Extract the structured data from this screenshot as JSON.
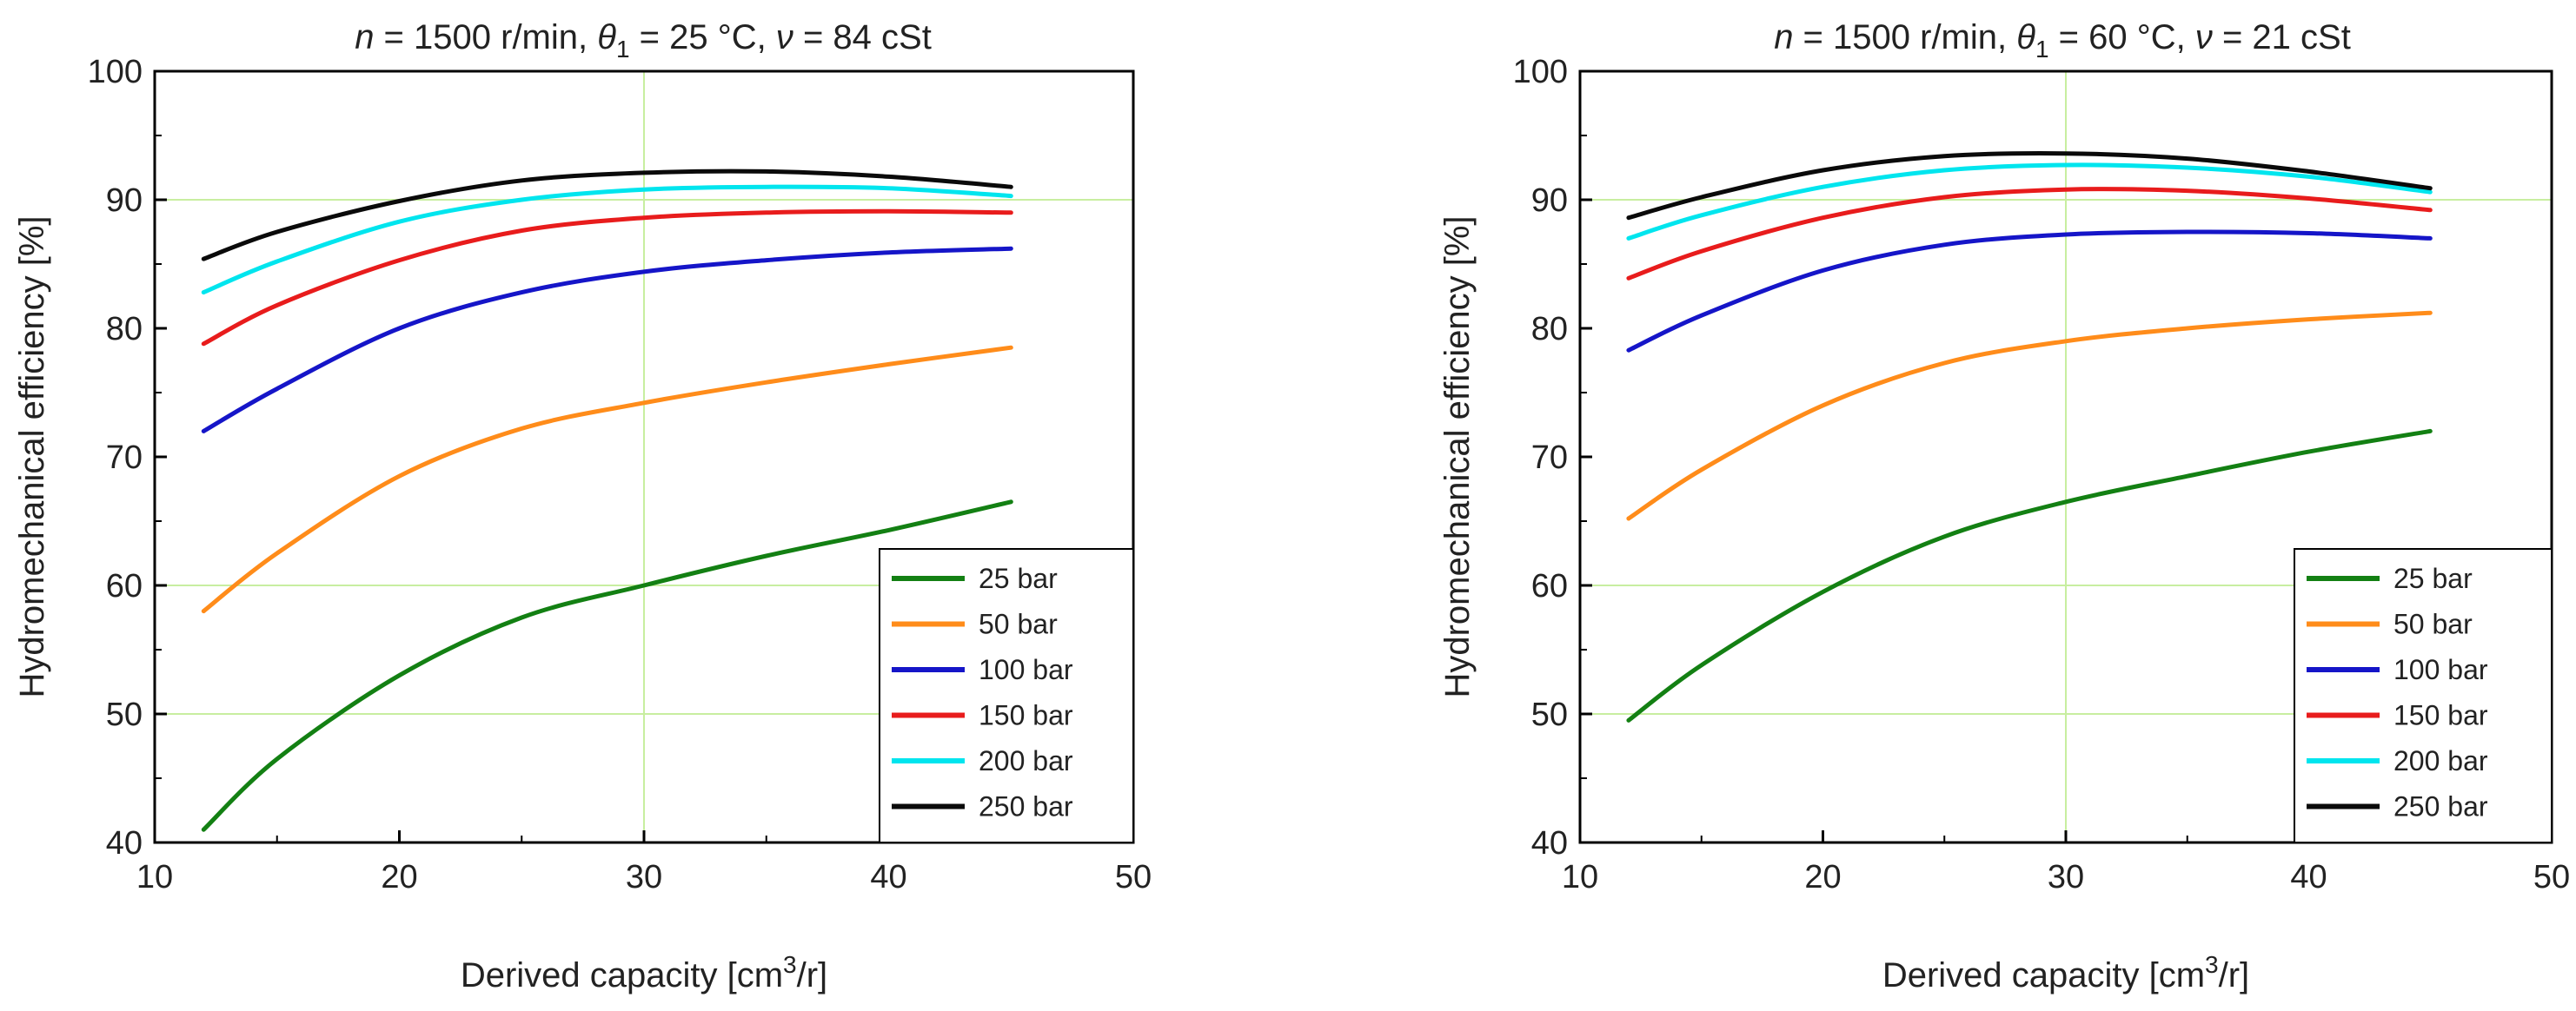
{
  "chart_data": [
    {
      "type": "line",
      "title": {
        "n": "n",
        "n_val": " = 1500 r/min, ",
        "theta": "θ",
        "theta_sub": "1",
        "theta_val": " = 25 °C, ",
        "nu": "ν",
        "nu_val": " = 84 cSt"
      },
      "xlabel": {
        "main": "Derived capacity [cm",
        "sup": "3",
        "tail": "/r]"
      },
      "ylabel": "Hydromechanical efficiency [%]",
      "xlim": [
        10,
        50
      ],
      "ylim": [
        40,
        100
      ],
      "xticks": [
        10,
        20,
        30,
        40,
        50
      ],
      "yticks": [
        40,
        50,
        60,
        70,
        80,
        90,
        100
      ],
      "grid": {
        "x": [
          30
        ],
        "y": [
          50,
          60,
          90
        ]
      },
      "legend_position": "bottom-right",
      "x": [
        12,
        15,
        20,
        25,
        30,
        35,
        40,
        45
      ],
      "series": [
        {
          "name": "25 bar",
          "color": "#138013",
          "values": [
            41.0,
            46.5,
            53.0,
            57.5,
            60.0,
            62.3,
            64.3,
            66.5
          ]
        },
        {
          "name": "50 bar",
          "color": "#ff8c1a",
          "values": [
            58.0,
            62.5,
            68.5,
            72.2,
            74.2,
            75.8,
            77.2,
            78.5
          ]
        },
        {
          "name": "100 bar",
          "color": "#1515c8",
          "values": [
            72.0,
            75.3,
            80.0,
            82.8,
            84.4,
            85.3,
            85.9,
            86.2
          ]
        },
        {
          "name": "150 bar",
          "color": "#e81c1c",
          "values": [
            78.8,
            81.8,
            85.3,
            87.6,
            88.6,
            89.0,
            89.1,
            89.0
          ]
        },
        {
          "name": "200 bar",
          "color": "#00e5ee",
          "values": [
            82.8,
            85.2,
            88.3,
            90.0,
            90.8,
            91.0,
            90.9,
            90.3
          ]
        },
        {
          "name": "250 bar",
          "color": "#0a0a0a",
          "values": [
            85.4,
            87.5,
            89.9,
            91.5,
            92.1,
            92.2,
            91.8,
            91.0
          ]
        }
      ]
    },
    {
      "type": "line",
      "title": {
        "n": "n",
        "n_val": " = 1500 r/min, ",
        "theta": "θ",
        "theta_sub": "1",
        "theta_val": " = 60 °C, ",
        "nu": "ν",
        "nu_val": " = 21 cSt"
      },
      "xlabel": {
        "main": "Derived capacity [cm",
        "sup": "3",
        "tail": "/r]"
      },
      "ylabel": "Hydromechanical efficiency [%]",
      "xlim": [
        10,
        50
      ],
      "ylim": [
        40,
        100
      ],
      "xticks": [
        10,
        20,
        30,
        40,
        50
      ],
      "yticks": [
        40,
        50,
        60,
        70,
        80,
        90,
        100
      ],
      "grid": {
        "x": [
          30
        ],
        "y": [
          50,
          60,
          90
        ]
      },
      "legend_position": "bottom-right",
      "x": [
        12,
        15,
        20,
        25,
        30,
        35,
        40,
        45
      ],
      "series": [
        {
          "name": "25 bar",
          "color": "#138013",
          "values": [
            49.5,
            53.8,
            59.5,
            63.8,
            66.5,
            68.5,
            70.4,
            72.0
          ]
        },
        {
          "name": "50 bar",
          "color": "#ff8c1a",
          "values": [
            65.2,
            69.0,
            74.0,
            77.3,
            79.0,
            80.0,
            80.7,
            81.2
          ]
        },
        {
          "name": "100 bar",
          "color": "#1515c8",
          "values": [
            78.3,
            81.0,
            84.5,
            86.5,
            87.3,
            87.5,
            87.4,
            87.0
          ]
        },
        {
          "name": "150 bar",
          "color": "#e81c1c",
          "values": [
            83.9,
            86.0,
            88.6,
            90.2,
            90.8,
            90.7,
            90.1,
            89.2
          ]
        },
        {
          "name": "200 bar",
          "color": "#00e5ee",
          "values": [
            87.0,
            88.8,
            91.0,
            92.3,
            92.7,
            92.5,
            91.8,
            90.6
          ]
        },
        {
          "name": "250 bar",
          "color": "#0a0a0a",
          "values": [
            88.6,
            90.2,
            92.3,
            93.4,
            93.6,
            93.2,
            92.2,
            90.9
          ]
        }
      ]
    }
  ]
}
